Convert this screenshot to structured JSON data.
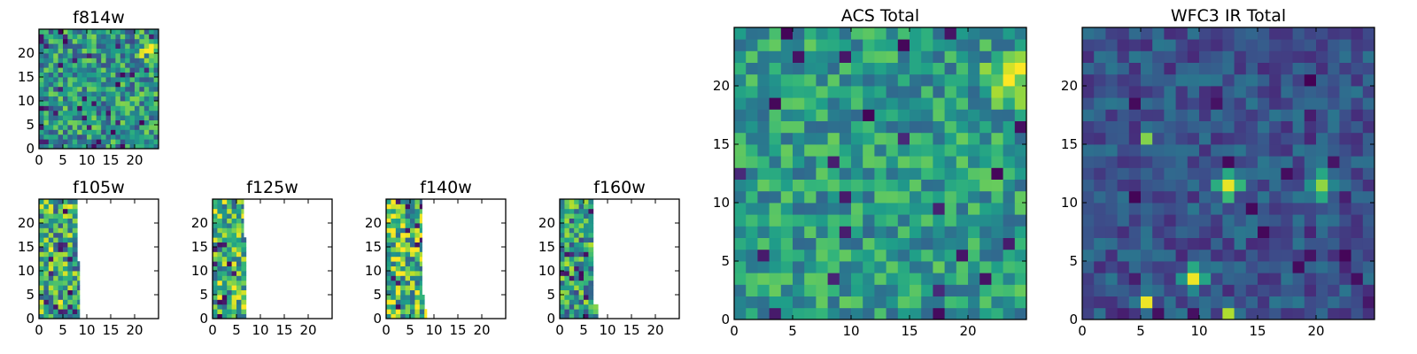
{
  "chart_data": [
    {
      "type": "heatmap",
      "title": "f814w",
      "colormap": "viridis",
      "grid": [
        25,
        25
      ],
      "xlim": [
        0,
        25
      ],
      "ylim": [
        0,
        25
      ],
      "xticks": [
        0,
        5,
        10,
        15,
        20
      ],
      "yticks": [
        0,
        5,
        10,
        15,
        20
      ],
      "seed": 11,
      "base": 0.52,
      "noise": 0.3,
      "dark_rate": 0.05,
      "hot": [
        {
          "x": 23.5,
          "y": 20,
          "r": 2.2,
          "amp": 0.55
        }
      ],
      "coverage": null
    },
    {
      "type": "heatmap",
      "title": "f105w",
      "colormap": "viridis",
      "grid": [
        25,
        25
      ],
      "xlim": [
        0,
        25
      ],
      "ylim": [
        0,
        25
      ],
      "xticks": [
        0,
        5,
        10,
        15,
        20
      ],
      "yticks": [
        0,
        5,
        10,
        15,
        20
      ],
      "seed": 23,
      "base": 0.62,
      "noise": 0.38,
      "dark_rate": 0.06,
      "hot": [],
      "coverage": [
        [
          0,
          12,
          8.5
        ],
        [
          12,
          25,
          8
        ]
      ]
    },
    {
      "type": "heatmap",
      "title": "f125w",
      "colormap": "viridis",
      "grid": [
        25,
        25
      ],
      "xlim": [
        0,
        25
      ],
      "ylim": [
        0,
        25
      ],
      "xticks": [
        0,
        5,
        10,
        15,
        20
      ],
      "yticks": [
        0,
        5,
        10,
        15,
        20
      ],
      "seed": 37,
      "base": 0.66,
      "noise": 0.36,
      "dark_rate": 0.06,
      "hot": [],
      "coverage": [
        [
          0,
          17,
          7
        ],
        [
          17,
          25,
          6.5
        ]
      ]
    },
    {
      "type": "heatmap",
      "title": "f140w",
      "colormap": "viridis",
      "grid": [
        25,
        25
      ],
      "xlim": [
        0,
        25
      ],
      "ylim": [
        0,
        25
      ],
      "xticks": [
        0,
        5,
        10,
        15,
        20
      ],
      "yticks": [
        0,
        5,
        10,
        15,
        20
      ],
      "seed": 41,
      "base": 0.68,
      "noise": 0.38,
      "dark_rate": 0.06,
      "hot": [],
      "coverage": [
        [
          0,
          2,
          8.5
        ],
        [
          2,
          5,
          8
        ],
        [
          5,
          25,
          7.5
        ]
      ]
    },
    {
      "type": "heatmap",
      "title": "f160w",
      "colormap": "viridis",
      "grid": [
        25,
        25
      ],
      "xlim": [
        0,
        25
      ],
      "ylim": [
        0,
        25
      ],
      "xticks": [
        0,
        5,
        10,
        15,
        20
      ],
      "yticks": [
        0,
        5,
        10,
        15,
        20
      ],
      "seed": 53,
      "base": 0.55,
      "noise": 0.35,
      "dark_rate": 0.06,
      "hot": [],
      "coverage": [
        [
          0,
          3,
          8
        ],
        [
          3,
          25,
          7
        ]
      ]
    },
    {
      "type": "heatmap",
      "title": "ACS Total",
      "colormap": "viridis",
      "grid": [
        25,
        25
      ],
      "xlim": [
        0,
        25
      ],
      "ylim": [
        0,
        25
      ],
      "xticks": [
        0,
        5,
        10,
        15,
        20
      ],
      "yticks": [
        0,
        5,
        10,
        15,
        20
      ],
      "seed": 67,
      "base": 0.55,
      "noise": 0.22,
      "dark_rate": 0.03,
      "hot": [
        {
          "x": 23.5,
          "y": 20.5,
          "r": 2.5,
          "amp": 0.45
        }
      ],
      "coverage": null
    },
    {
      "type": "heatmap",
      "title": "WFC3 IR Total",
      "colormap": "viridis",
      "grid": [
        25,
        25
      ],
      "xlim": [
        0,
        25
      ],
      "ylim": [
        0,
        25
      ],
      "xticks": [
        0,
        5,
        10,
        15,
        20
      ],
      "yticks": [
        0,
        5,
        10,
        15,
        20
      ],
      "seed": 79,
      "base": 0.26,
      "noise": 0.14,
      "dark_rate": 0.05,
      "hot": [
        {
          "x": 12.5,
          "y": 11.5,
          "r": 1.0,
          "amp": 0.65
        },
        {
          "x": 20.5,
          "y": 11.5,
          "r": 1.0,
          "amp": 0.65
        },
        {
          "x": 9.5,
          "y": 3.5,
          "r": 1.0,
          "amp": 0.6
        },
        {
          "x": 5.5,
          "y": 15.5,
          "r": 0.6,
          "amp": 0.6
        },
        {
          "x": 5.5,
          "y": 1.5,
          "r": 0.6,
          "amp": 0.65
        },
        {
          "x": 12.5,
          "y": 0.5,
          "r": 0.9,
          "amp": 0.7
        }
      ],
      "coverage": null
    }
  ]
}
